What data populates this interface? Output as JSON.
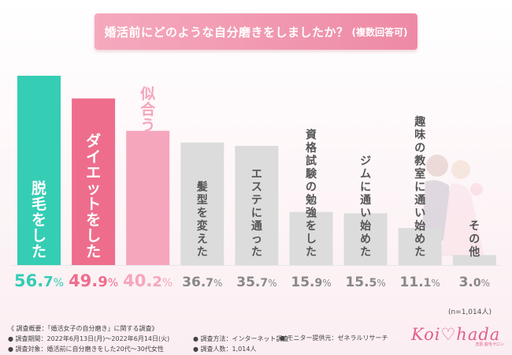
{
  "header": {
    "title": "婚活前にどのような自分磨きをしましたか？",
    "subtitle": "(複数回答可)"
  },
  "chart_data": {
    "type": "bar",
    "categories": [
      "脱毛をした",
      "ダイエットをした",
      "似合うメイクを練習した",
      "髪型を変えた",
      "エステに通った",
      "資格試験の勉強をした",
      "ジムに通い始めた",
      "趣味の教室に通い始めた",
      "その他"
    ],
    "values": [
      56.7,
      49.9,
      40.2,
      36.7,
      35.7,
      15.9,
      15.5,
      11.1,
      3.0
    ],
    "value_labels": [
      "56.7%",
      "49.9%",
      "40.2%",
      "36.7%",
      "35.7%",
      "15.9%",
      "15.5%",
      "11.1%",
      "3.0%"
    ],
    "ylim": [
      0,
      60
    ],
    "colors": [
      "#35cdb4",
      "#ee6d8d",
      "#f5a6bc",
      "#dcdcdc",
      "#dcdcdc",
      "#dcdcdc",
      "#dcdcdc",
      "#dcdcdc",
      "#dcdcdc"
    ],
    "label_colors": [
      "#ffffff",
      "#ffffff",
      "#f5a6bc",
      "#555555",
      "#555555",
      "#555555",
      "#555555",
      "#555555",
      "#555555"
    ],
    "value_colors": [
      "#35cdb4",
      "#ee6d8d",
      "#f5a6bc",
      "#888888",
      "#888888",
      "#888888",
      "#888888",
      "#888888",
      "#888888"
    ],
    "sample_size": "(n=1,014人)"
  },
  "footer": {
    "overview": "《 調査概要：「婚活女子の自分磨き」に関する調査》",
    "period": "● 調査期間：2022年6月13日(月)〜2022年6月14日(火)",
    "target": "● 調査対象：婚活前に自分磨きをした20代〜30代女性",
    "method": "● 調査方法：インターネット調査",
    "count": "● 調査人数：1,014人",
    "provider": "● モニター提供元：ゼネラルリサーチ"
  },
  "logo": {
    "text": "Koi♡hada",
    "sub": "恋肌 脱毛サロン"
  }
}
